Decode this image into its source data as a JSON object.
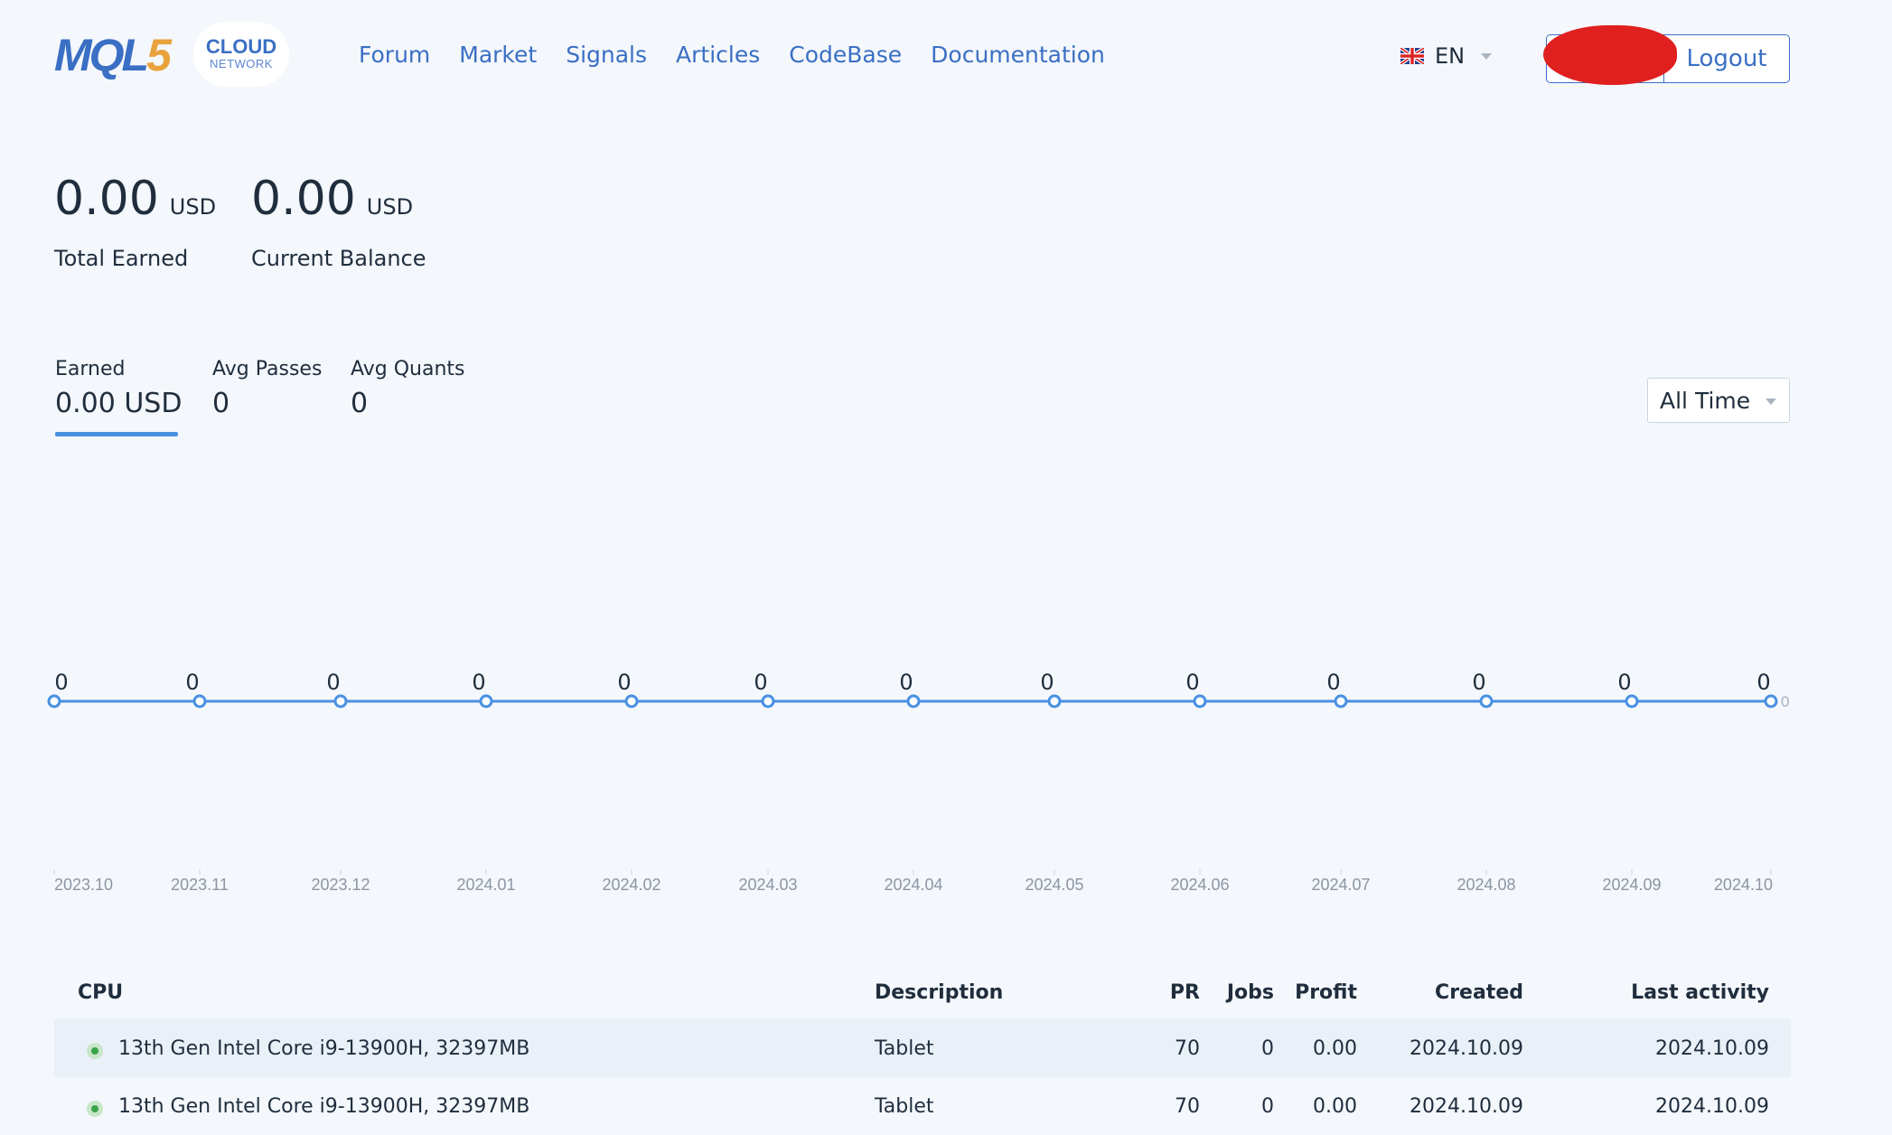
{
  "header": {
    "logo_main": "MQL",
    "logo_five": "5",
    "badge_title": "CLOUD",
    "badge_subtitle": "NETWORK",
    "nav": [
      "Forum",
      "Market",
      "Signals",
      "Articles",
      "CodeBase",
      "Documentation"
    ],
    "language": "EN",
    "logout_label": "Logout"
  },
  "balances": {
    "total_earned": {
      "value": "0.00",
      "currency": "USD",
      "label": "Total Earned"
    },
    "current_balance": {
      "value": "0.00",
      "currency": "USD",
      "label": "Current Balance"
    }
  },
  "stats": {
    "tabs": [
      {
        "label": "Earned",
        "value": "0.00 USD",
        "active": true
      },
      {
        "label": "Avg Passes",
        "value": "0",
        "active": false
      },
      {
        "label": "Avg Quants",
        "value": "0",
        "active": false
      }
    ],
    "period": "All Time"
  },
  "chart_data": {
    "type": "line",
    "x": [
      "2023.10",
      "2023.11",
      "2023.12",
      "2024.01",
      "2024.02",
      "2024.03",
      "2024.04",
      "2024.05",
      "2024.06",
      "2024.07",
      "2024.08",
      "2024.09",
      "2024.10"
    ],
    "series": [
      {
        "values": [
          0,
          0,
          0,
          0,
          0,
          0,
          0,
          0,
          0,
          0,
          0,
          0,
          0
        ]
      }
    ],
    "point_labels": [
      "0",
      "0",
      "0",
      "0",
      "0",
      "0",
      "0",
      "0",
      "0",
      "0",
      "0",
      "0",
      "0"
    ],
    "end_label": "0",
    "line_color": "#4a90e2",
    "grid": false
  },
  "table": {
    "headers": {
      "cpu": "CPU",
      "description": "Description",
      "pr": "PR",
      "jobs": "Jobs",
      "profit": "Profit",
      "created": "Created",
      "last_activity": "Last activity"
    },
    "rows": [
      {
        "cpu": "13th Gen Intel Core i9-13900H, 32397MB",
        "description": "Tablet",
        "pr": "70",
        "jobs": "0",
        "profit": "0.00",
        "created": "2024.10.09",
        "last_activity": "2024.10.09"
      },
      {
        "cpu": "13th Gen Intel Core i9-13900H, 32397MB",
        "description": "Tablet",
        "pr": "70",
        "jobs": "0",
        "profit": "0.00",
        "created": "2024.10.09",
        "last_activity": "2024.10.09"
      }
    ]
  }
}
